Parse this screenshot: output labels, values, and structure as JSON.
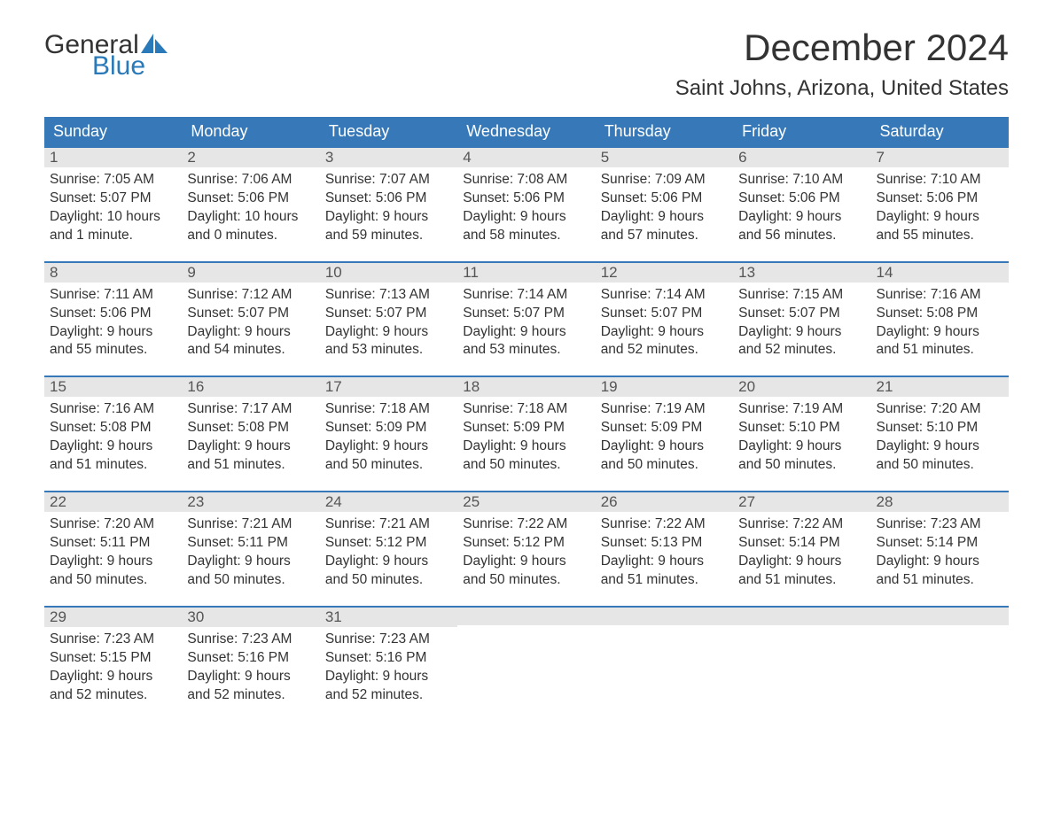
{
  "logo": {
    "word1": "General",
    "word2": "Blue",
    "sail_color": "#2a7ab9"
  },
  "title": "December 2024",
  "location": "Saint Johns, Arizona, United States",
  "colors": {
    "header_bg": "#3779b8",
    "header_text": "#ffffff",
    "week_border": "#3779b8",
    "daynum_bg": "#e6e6e6",
    "body_bg": "#ffffff",
    "text": "#333333"
  },
  "weekdays": [
    "Sunday",
    "Monday",
    "Tuesday",
    "Wednesday",
    "Thursday",
    "Friday",
    "Saturday"
  ],
  "weeks": [
    [
      {
        "n": "1",
        "sunrise": "Sunrise: 7:05 AM",
        "sunset": "Sunset: 5:07 PM",
        "d1": "Daylight: 10 hours",
        "d2": "and 1 minute."
      },
      {
        "n": "2",
        "sunrise": "Sunrise: 7:06 AM",
        "sunset": "Sunset: 5:06 PM",
        "d1": "Daylight: 10 hours",
        "d2": "and 0 minutes."
      },
      {
        "n": "3",
        "sunrise": "Sunrise: 7:07 AM",
        "sunset": "Sunset: 5:06 PM",
        "d1": "Daylight: 9 hours",
        "d2": "and 59 minutes."
      },
      {
        "n": "4",
        "sunrise": "Sunrise: 7:08 AM",
        "sunset": "Sunset: 5:06 PM",
        "d1": "Daylight: 9 hours",
        "d2": "and 58 minutes."
      },
      {
        "n": "5",
        "sunrise": "Sunrise: 7:09 AM",
        "sunset": "Sunset: 5:06 PM",
        "d1": "Daylight: 9 hours",
        "d2": "and 57 minutes."
      },
      {
        "n": "6",
        "sunrise": "Sunrise: 7:10 AM",
        "sunset": "Sunset: 5:06 PM",
        "d1": "Daylight: 9 hours",
        "d2": "and 56 minutes."
      },
      {
        "n": "7",
        "sunrise": "Sunrise: 7:10 AM",
        "sunset": "Sunset: 5:06 PM",
        "d1": "Daylight: 9 hours",
        "d2": "and 55 minutes."
      }
    ],
    [
      {
        "n": "8",
        "sunrise": "Sunrise: 7:11 AM",
        "sunset": "Sunset: 5:06 PM",
        "d1": "Daylight: 9 hours",
        "d2": "and 55 minutes."
      },
      {
        "n": "9",
        "sunrise": "Sunrise: 7:12 AM",
        "sunset": "Sunset: 5:07 PM",
        "d1": "Daylight: 9 hours",
        "d2": "and 54 minutes."
      },
      {
        "n": "10",
        "sunrise": "Sunrise: 7:13 AM",
        "sunset": "Sunset: 5:07 PM",
        "d1": "Daylight: 9 hours",
        "d2": "and 53 minutes."
      },
      {
        "n": "11",
        "sunrise": "Sunrise: 7:14 AM",
        "sunset": "Sunset: 5:07 PM",
        "d1": "Daylight: 9 hours",
        "d2": "and 53 minutes."
      },
      {
        "n": "12",
        "sunrise": "Sunrise: 7:14 AM",
        "sunset": "Sunset: 5:07 PM",
        "d1": "Daylight: 9 hours",
        "d2": "and 52 minutes."
      },
      {
        "n": "13",
        "sunrise": "Sunrise: 7:15 AM",
        "sunset": "Sunset: 5:07 PM",
        "d1": "Daylight: 9 hours",
        "d2": "and 52 minutes."
      },
      {
        "n": "14",
        "sunrise": "Sunrise: 7:16 AM",
        "sunset": "Sunset: 5:08 PM",
        "d1": "Daylight: 9 hours",
        "d2": "and 51 minutes."
      }
    ],
    [
      {
        "n": "15",
        "sunrise": "Sunrise: 7:16 AM",
        "sunset": "Sunset: 5:08 PM",
        "d1": "Daylight: 9 hours",
        "d2": "and 51 minutes."
      },
      {
        "n": "16",
        "sunrise": "Sunrise: 7:17 AM",
        "sunset": "Sunset: 5:08 PM",
        "d1": "Daylight: 9 hours",
        "d2": "and 51 minutes."
      },
      {
        "n": "17",
        "sunrise": "Sunrise: 7:18 AM",
        "sunset": "Sunset: 5:09 PM",
        "d1": "Daylight: 9 hours",
        "d2": "and 50 minutes."
      },
      {
        "n": "18",
        "sunrise": "Sunrise: 7:18 AM",
        "sunset": "Sunset: 5:09 PM",
        "d1": "Daylight: 9 hours",
        "d2": "and 50 minutes."
      },
      {
        "n": "19",
        "sunrise": "Sunrise: 7:19 AM",
        "sunset": "Sunset: 5:09 PM",
        "d1": "Daylight: 9 hours",
        "d2": "and 50 minutes."
      },
      {
        "n": "20",
        "sunrise": "Sunrise: 7:19 AM",
        "sunset": "Sunset: 5:10 PM",
        "d1": "Daylight: 9 hours",
        "d2": "and 50 minutes."
      },
      {
        "n": "21",
        "sunrise": "Sunrise: 7:20 AM",
        "sunset": "Sunset: 5:10 PM",
        "d1": "Daylight: 9 hours",
        "d2": "and 50 minutes."
      }
    ],
    [
      {
        "n": "22",
        "sunrise": "Sunrise: 7:20 AM",
        "sunset": "Sunset: 5:11 PM",
        "d1": "Daylight: 9 hours",
        "d2": "and 50 minutes."
      },
      {
        "n": "23",
        "sunrise": "Sunrise: 7:21 AM",
        "sunset": "Sunset: 5:11 PM",
        "d1": "Daylight: 9 hours",
        "d2": "and 50 minutes."
      },
      {
        "n": "24",
        "sunrise": "Sunrise: 7:21 AM",
        "sunset": "Sunset: 5:12 PM",
        "d1": "Daylight: 9 hours",
        "d2": "and 50 minutes."
      },
      {
        "n": "25",
        "sunrise": "Sunrise: 7:22 AM",
        "sunset": "Sunset: 5:12 PM",
        "d1": "Daylight: 9 hours",
        "d2": "and 50 minutes."
      },
      {
        "n": "26",
        "sunrise": "Sunrise: 7:22 AM",
        "sunset": "Sunset: 5:13 PM",
        "d1": "Daylight: 9 hours",
        "d2": "and 51 minutes."
      },
      {
        "n": "27",
        "sunrise": "Sunrise: 7:22 AM",
        "sunset": "Sunset: 5:14 PM",
        "d1": "Daylight: 9 hours",
        "d2": "and 51 minutes."
      },
      {
        "n": "28",
        "sunrise": "Sunrise: 7:23 AM",
        "sunset": "Sunset: 5:14 PM",
        "d1": "Daylight: 9 hours",
        "d2": "and 51 minutes."
      }
    ],
    [
      {
        "n": "29",
        "sunrise": "Sunrise: 7:23 AM",
        "sunset": "Sunset: 5:15 PM",
        "d1": "Daylight: 9 hours",
        "d2": "and 52 minutes."
      },
      {
        "n": "30",
        "sunrise": "Sunrise: 7:23 AM",
        "sunset": "Sunset: 5:16 PM",
        "d1": "Daylight: 9 hours",
        "d2": "and 52 minutes."
      },
      {
        "n": "31",
        "sunrise": "Sunrise: 7:23 AM",
        "sunset": "Sunset: 5:16 PM",
        "d1": "Daylight: 9 hours",
        "d2": "and 52 minutes."
      },
      null,
      null,
      null,
      null
    ]
  ]
}
